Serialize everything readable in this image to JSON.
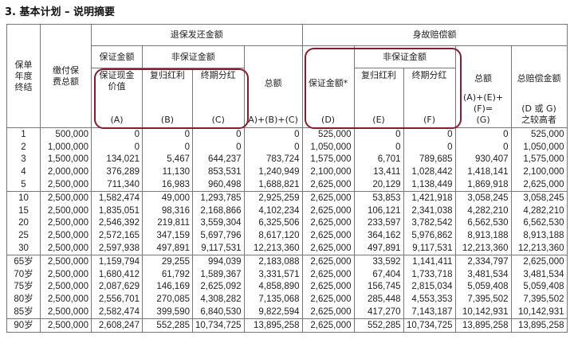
{
  "title": "3. 基本计划 – 说明摘要",
  "headers": {
    "year": "保单年度终结",
    "premium": "缴付保费总额",
    "surrender": "退保发还金额",
    "death": "身故赔偿额",
    "guaranteed": "保证金额",
    "non_guaranteed": "非保证金额",
    "guaranteed_cash_value": "保证现金价值",
    "reversionary_bonus": "复归红利",
    "terminal_dividend": "终期分红",
    "total": "总额",
    "guaranteed_death": "保证金额*",
    "total_death_benefit": "总赔偿金额",
    "A": "(A)",
    "B": "(B)",
    "C": "(C)",
    "ABC": "A)+(B)+(C)",
    "D": "(D)",
    "E": "(E)",
    "F": "(F)",
    "G1": "(A)+(E)+(F)=",
    "G2": "(G)",
    "DG1": "(D 或 G)",
    "DG2": "之较高者"
  },
  "rows": [
    [
      "1",
      "500,000",
      "0",
      "0",
      "0",
      "0",
      "525,000",
      "0",
      "0",
      "0",
      "525,000"
    ],
    [
      "2",
      "1,000,000",
      "0",
      "0",
      "0",
      "0",
      "1,050,000",
      "0",
      "0",
      "0",
      "1,050,000"
    ],
    [
      "3",
      "1,500,000",
      "134,021",
      "5,467",
      "644,237",
      "783,724",
      "1,575,000",
      "6,701",
      "789,685",
      "930,407",
      "1,575,000"
    ],
    [
      "4",
      "2,000,000",
      "376,289",
      "11,130",
      "853,531",
      "1,240,949",
      "2,100,000",
      "13,411",
      "1,028,442",
      "1,418,141",
      "2,100,000"
    ],
    [
      "5",
      "2,500,000",
      "711,340",
      "16,983",
      "960,498",
      "1,688,821",
      "2,625,000",
      "20,129",
      "1,138,449",
      "1,869,918",
      "2,625,000"
    ],
    [
      "10",
      "2,500,000",
      "1,582,474",
      "49,000",
      "1,293,785",
      "2,925,259",
      "2,625,000",
      "53,853",
      "1,421,918",
      "3,058,245",
      "3,058,245"
    ],
    [
      "15",
      "2,500,000",
      "1,835,051",
      "98,316",
      "2,168,866",
      "4,102,234",
      "2,625,000",
      "106,121",
      "2,341,038",
      "4,282,210",
      "4,282,210"
    ],
    [
      "20",
      "2,500,000",
      "2,546,392",
      "219,811",
      "3,559,304",
      "6,325,506",
      "2,625,000",
      "233,597",
      "3,782,542",
      "6,562,530",
      "6,562,530"
    ],
    [
      "25",
      "2,500,000",
      "2,572,165",
      "347,159",
      "5,697,796",
      "8,617,120",
      "2,625,000",
      "364,162",
      "5,976,862",
      "8,913,188",
      "8,913,188"
    ],
    [
      "30",
      "2,500,000",
      "2,597,938",
      "497,891",
      "9,117,531",
      "12,213,360",
      "2,625,000",
      "497,891",
      "9,117,531",
      "12,213,360",
      "12,213,360"
    ],
    [
      "65岁",
      "2,500,000",
      "1,159,794",
      "29,255",
      "994,039",
      "2,183,088",
      "2,625,000",
      "33,592",
      "1,141,411",
      "2,334,797",
      "2,625,000"
    ],
    [
      "70岁",
      "2,500,000",
      "1,680,412",
      "61,792",
      "1,589,367",
      "3,331,571",
      "2,625,000",
      "67,404",
      "1,733,718",
      "3,481,534",
      "3,481,534"
    ],
    [
      "75岁",
      "2,500,000",
      "2,087,629",
      "146,169",
      "2,625,092",
      "4,858,890",
      "2,625,000",
      "156,745",
      "2,815,034",
      "5,059,408",
      "5,059,408"
    ],
    [
      "80岁",
      "2,500,000",
      "2,556,701",
      "270,085",
      "4,308,282",
      "7,135,068",
      "2,625,000",
      "285,448",
      "4,553,353",
      "7,395,502",
      "7,395,502"
    ],
    [
      "85岁",
      "2,500,000",
      "2,582,474",
      "399,590",
      "6,840,530",
      "9,822,594",
      "2,625,000",
      "417,270",
      "7,143,187",
      "10,142,931",
      "10,142,931"
    ],
    [
      "90岁",
      "2,500,000",
      "2,608,247",
      "552,285",
      "10,734,725",
      "13,895,258",
      "2,625,000",
      "552,285",
      "10,734,725",
      "13,895,258",
      "13,895,258"
    ]
  ],
  "group_starts": [
    0,
    5,
    10,
    15
  ],
  "highlight_color": "#8b1a2a"
}
